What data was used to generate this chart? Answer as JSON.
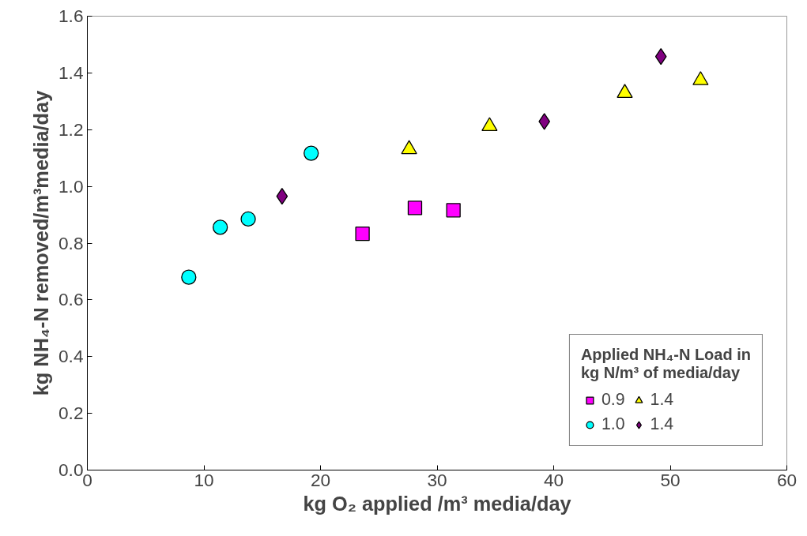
{
  "chart_data": {
    "type": "scatter",
    "xlabel": "kg O₂ applied /m³ media/day",
    "ylabel": "kg NH₄-N removed/m³media/day",
    "legend_title": "Applied NH₄-N Load in\nkg N/m³ of media/day",
    "legend": "bottom right",
    "grid": false,
    "xlim": [
      0,
      60
    ],
    "xticks": [
      0,
      10,
      20,
      30,
      40,
      50,
      60
    ],
    "ylim": [
      0,
      1.6
    ],
    "yticks": [
      {
        "value": 0,
        "label": "0.0"
      },
      0.2,
      0.4,
      0.6,
      0.8,
      {
        "value": 1,
        "label": "1.0"
      },
      1.2,
      1.4,
      1.6
    ],
    "series": [
      {
        "name": "0.9",
        "color": "#ff00ff",
        "marker": "square",
        "x": [
          23.6,
          28.1,
          31.4
        ],
        "values": [
          0.833,
          0.924,
          0.916
        ]
      },
      {
        "name": "1.0",
        "color": "#00ffff",
        "marker": "circle",
        "x": [
          8.7,
          11.4,
          13.8,
          19.2
        ],
        "values": [
          0.68,
          0.856,
          0.885,
          1.117
        ]
      },
      {
        "name": "1.4",
        "color": "#ffff00",
        "marker": "triangle",
        "x": [
          27.6,
          34.5,
          46.1,
          52.6
        ],
        "values": [
          1.131,
          1.212,
          1.329,
          1.374
        ]
      },
      {
        "name": "1.4",
        "color": "#800080",
        "marker": "diamond",
        "x": [
          16.7,
          39.2,
          49.2
        ],
        "values": [
          0.965,
          1.229,
          1.458
        ]
      }
    ]
  }
}
